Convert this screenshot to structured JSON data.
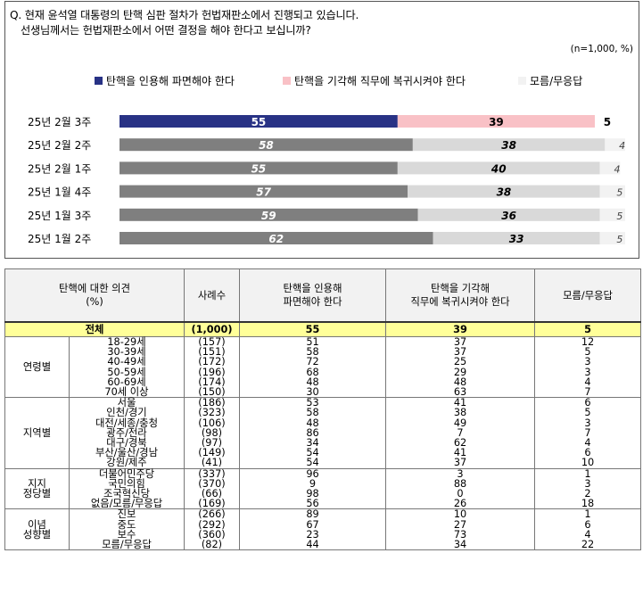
{
  "question": {
    "line1": "Q. 현재 윤석열 대통령의 탄핵 심판 절차가 헌법재판소에서 진행되고 있습니다.",
    "line2": "선생님께서는 헌법재판소에서 어떤 결정을 해야 한다고 보십니까?"
  },
  "sample_note": "(n=1,000, %)",
  "colors": {
    "impeach_latest": "#283285",
    "reject_latest": "#f9c1c6",
    "impeach_past": "#7f7f7f",
    "reject_past": "#d9d9d9",
    "dk": "#f2f2f2",
    "total_row_bg": "#ffff99"
  },
  "chart_data": {
    "type": "bar",
    "orientation": "horizontal",
    "stacked": true,
    "legend_position": "top",
    "categories": [
      "25년 2월 3주",
      "25년 2월 2주",
      "25년 2월 1주",
      "25년 1월 4주",
      "25년 1월 3주",
      "25년 1월 2주"
    ],
    "series": [
      {
        "name": "탄핵을 인용해 파면해야 한다",
        "values": [
          55,
          58,
          55,
          57,
          59,
          62
        ]
      },
      {
        "name": "탄핵을 기각해 직무에 복귀시켜야 한다",
        "values": [
          39,
          38,
          40,
          38,
          36,
          33
        ]
      },
      {
        "name": "모름/무응답",
        "values": [
          5,
          4,
          4,
          5,
          5,
          5
        ]
      }
    ],
    "xlim": [
      0,
      100
    ]
  },
  "table": {
    "headers": {
      "opinion_line1": "탄핵에 대한 의견",
      "opinion_line2": "(%)",
      "cases": "사례수",
      "impeach_line1": "탄핵을 인용해",
      "impeach_line2": "파면해야 한다",
      "reject_line1": "탄핵을 기각해",
      "reject_line2": "직무에 복귀시켜야 한다",
      "dk": "모름/무응답"
    },
    "total": {
      "label": "전체",
      "n": "(1,000)",
      "impeach": "55",
      "reject": "39",
      "dk": "5"
    },
    "groups": [
      {
        "label_lines": [
          "연령별"
        ],
        "rows": [
          {
            "label": "18-29세",
            "n": "(157)",
            "impeach": "51",
            "reject": "37",
            "dk": "12"
          },
          {
            "label": "30-39세",
            "n": "(151)",
            "impeach": "58",
            "reject": "37",
            "dk": "5"
          },
          {
            "label": "40-49세",
            "n": "(172)",
            "impeach": "72",
            "reject": "25",
            "dk": "3"
          },
          {
            "label": "50-59세",
            "n": "(196)",
            "impeach": "68",
            "reject": "29",
            "dk": "3"
          },
          {
            "label": "60-69세",
            "n": "(174)",
            "impeach": "48",
            "reject": "48",
            "dk": "4"
          },
          {
            "label": "70세 이상",
            "n": "(150)",
            "impeach": "30",
            "reject": "63",
            "dk": "7"
          }
        ]
      },
      {
        "label_lines": [
          "지역별"
        ],
        "rows": [
          {
            "label": "서울",
            "n": "(186)",
            "impeach": "53",
            "reject": "41",
            "dk": "6"
          },
          {
            "label": "인천/경기",
            "n": "(323)",
            "impeach": "58",
            "reject": "38",
            "dk": "5"
          },
          {
            "label": "대전/세종/충청",
            "n": "(106)",
            "impeach": "48",
            "reject": "49",
            "dk": "3"
          },
          {
            "label": "광주/전라",
            "n": "(98)",
            "impeach": "86",
            "reject": "7",
            "dk": "7"
          },
          {
            "label": "대구/경북",
            "n": "(97)",
            "impeach": "34",
            "reject": "62",
            "dk": "4"
          },
          {
            "label": "부산/울산/경남",
            "n": "(149)",
            "impeach": "54",
            "reject": "41",
            "dk": "6"
          },
          {
            "label": "강원/제주",
            "n": "(41)",
            "impeach": "54",
            "reject": "37",
            "dk": "10"
          }
        ]
      },
      {
        "label_lines": [
          "지지",
          "정당별"
        ],
        "rows": [
          {
            "label": "더불어민주당",
            "n": "(337)",
            "impeach": "96",
            "reject": "3",
            "dk": "1"
          },
          {
            "label": "국민의힘",
            "n": "(370)",
            "impeach": "9",
            "reject": "88",
            "dk": "3"
          },
          {
            "label": "조국혁신당",
            "n": "(66)",
            "impeach": "98",
            "reject": "0",
            "dk": "2"
          },
          {
            "label": "없음/모름/무응답",
            "n": "(169)",
            "impeach": "56",
            "reject": "26",
            "dk": "18"
          }
        ]
      },
      {
        "label_lines": [
          "이념",
          "성향별"
        ],
        "rows": [
          {
            "label": "진보",
            "n": "(266)",
            "impeach": "89",
            "reject": "10",
            "dk": "1"
          },
          {
            "label": "중도",
            "n": "(292)",
            "impeach": "67",
            "reject": "27",
            "dk": "6"
          },
          {
            "label": "보수",
            "n": "(360)",
            "impeach": "23",
            "reject": "73",
            "dk": "4"
          },
          {
            "label": "모름/무응답",
            "n": "(82)",
            "impeach": "44",
            "reject": "34",
            "dk": "22"
          }
        ]
      }
    ]
  }
}
